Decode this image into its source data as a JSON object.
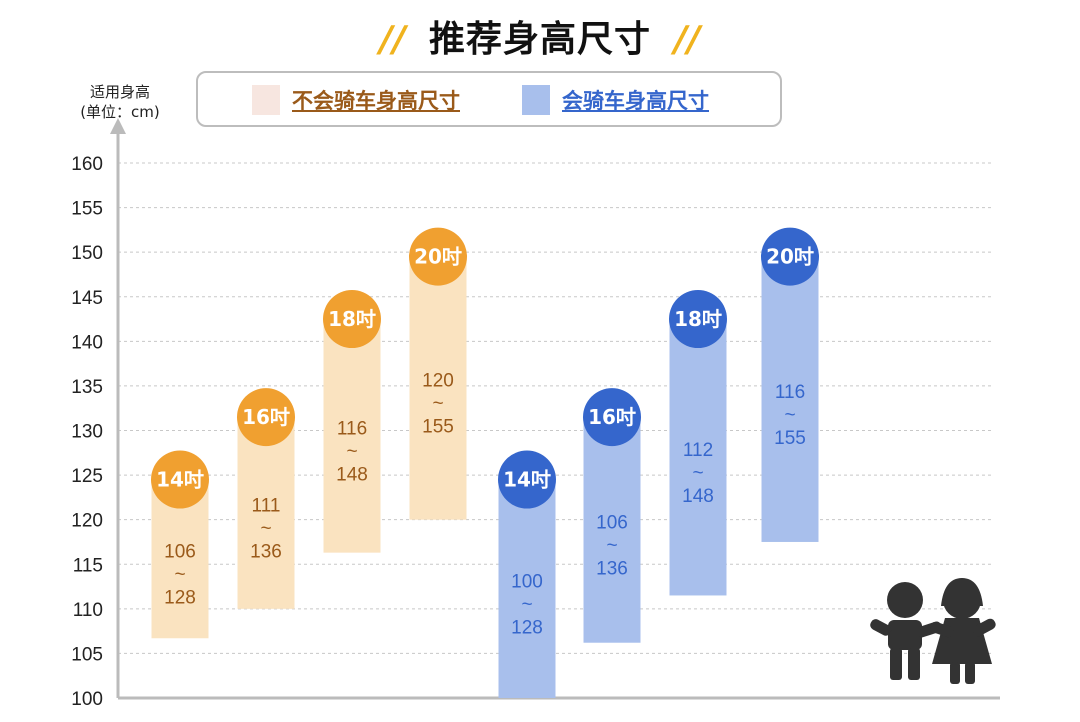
{
  "title": "推荐身高尺寸",
  "title_deco": "//",
  "colors": {
    "orange_bar": "#fae3c0",
    "orange_badge": "#f0a030",
    "orange_text": "#9a5a1a",
    "blue_bar": "#a8bfec",
    "blue_badge": "#3566cc",
    "blue_text": "#3566cc",
    "legend_orange": "#f7e6e0",
    "legend_blue": "#a8bfec",
    "axis": "#bbbbbb",
    "grid": "#c8c8c8"
  },
  "chart_data": {
    "type": "bar",
    "subtype": "floating-range",
    "ylabel": "适用身高",
    "ylabel_unit": "(单位：cm)",
    "ylim": [
      100,
      160
    ],
    "yticks": [
      100,
      105,
      110,
      115,
      120,
      125,
      130,
      135,
      140,
      145,
      150,
      155,
      160
    ],
    "grid": true,
    "legend_position": "top",
    "series": [
      {
        "name": "不会骑车身高尺寸",
        "color_key": "orange",
        "items": [
          {
            "size": "14吋",
            "min": 106,
            "max": 128,
            "bar_low": 106.7,
            "bar_high": 124.5
          },
          {
            "size": "16吋",
            "min": 111,
            "max": 136,
            "bar_low": 110,
            "bar_high": 131.5
          },
          {
            "size": "18吋",
            "min": 116,
            "max": 148,
            "bar_low": 116.3,
            "bar_high": 142.5
          },
          {
            "size": "20吋",
            "min": 120,
            "max": 155,
            "bar_low": 120,
            "bar_high": 149.5
          }
        ]
      },
      {
        "name": "会骑车身高尺寸",
        "color_key": "blue",
        "items": [
          {
            "size": "14吋",
            "min": 100,
            "max": 128,
            "bar_low": 100,
            "bar_high": 124.5
          },
          {
            "size": "16吋",
            "min": 106,
            "max": 136,
            "bar_low": 106.2,
            "bar_high": 131.5
          },
          {
            "size": "18吋",
            "min": 112,
            "max": 148,
            "bar_low": 111.5,
            "bar_high": 142.5
          },
          {
            "size": "20吋",
            "min": 116,
            "max": 155,
            "bar_low": 117.5,
            "bar_high": 149.5
          }
        ]
      }
    ],
    "range_separator": "~"
  },
  "decoration": {
    "icon": "children-icon"
  }
}
